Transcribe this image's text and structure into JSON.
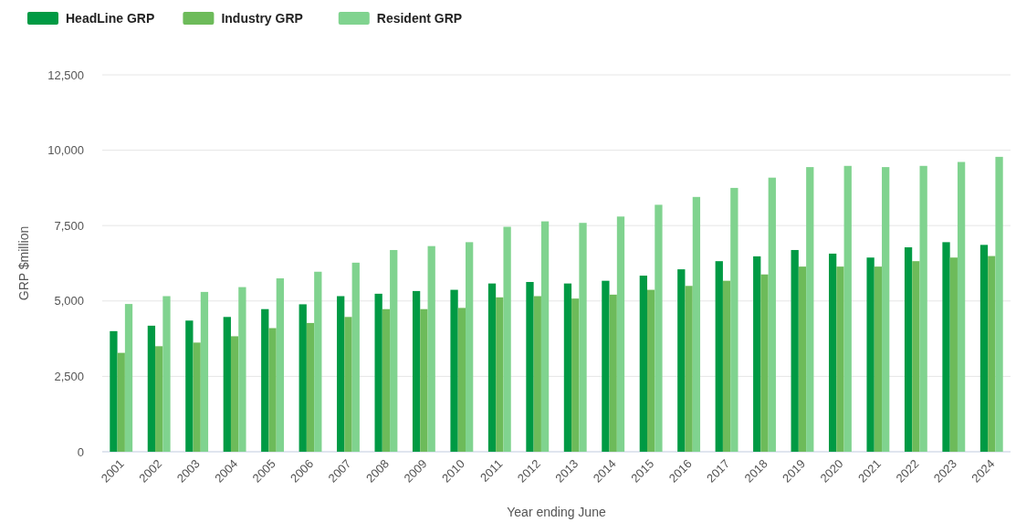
{
  "chart_data": {
    "type": "bar",
    "xlabel": "Year ending June",
    "ylabel": "GRP $million",
    "categories": [
      "2001",
      "2002",
      "2003",
      "2004",
      "2005",
      "2006",
      "2007",
      "2008",
      "2009",
      "2010",
      "2011",
      "2012",
      "2013",
      "2014",
      "2015",
      "2016",
      "2017",
      "2018",
      "2019",
      "2020",
      "2021",
      "2022",
      "2023",
      "2024"
    ],
    "series": [
      {
        "name": "HeadLine GRP",
        "color": "#009a44",
        "values": [
          4000,
          4180,
          4350,
          4470,
          4730,
          4890,
          5160,
          5240,
          5330,
          5370,
          5580,
          5630,
          5580,
          5670,
          5840,
          6050,
          6320,
          6480,
          6690,
          6570,
          6440,
          6780,
          6950,
          6860
        ]
      },
      {
        "name": "Industry GRP",
        "color": "#6dbb5a",
        "values": [
          3280,
          3500,
          3620,
          3830,
          4100,
          4270,
          4470,
          4730,
          4730,
          4770,
          5120,
          5160,
          5080,
          5210,
          5370,
          5500,
          5670,
          5880,
          6140,
          6140,
          6140,
          6320,
          6440,
          6490
        ]
      },
      {
        "name": "Resident GRP",
        "color": "#80d38f",
        "values": [
          4900,
          5160,
          5300,
          5460,
          5750,
          5970,
          6270,
          6690,
          6820,
          6950,
          7460,
          7640,
          7590,
          7800,
          8190,
          8450,
          8750,
          9090,
          9440,
          9480,
          9440,
          9480,
          9610,
          9780
        ]
      }
    ],
    "ylim": [
      0,
      12500
    ],
    "yticks": [
      {
        "value": 0,
        "label": "0"
      },
      {
        "value": 2500,
        "label": "2,500"
      },
      {
        "value": 5000,
        "label": "5,000"
      },
      {
        "value": 7500,
        "label": "7,500"
      },
      {
        "value": 10000,
        "label": "10,000"
      },
      {
        "value": 12500,
        "label": "12,500"
      }
    ],
    "grid": "y",
    "legend": "top left"
  }
}
